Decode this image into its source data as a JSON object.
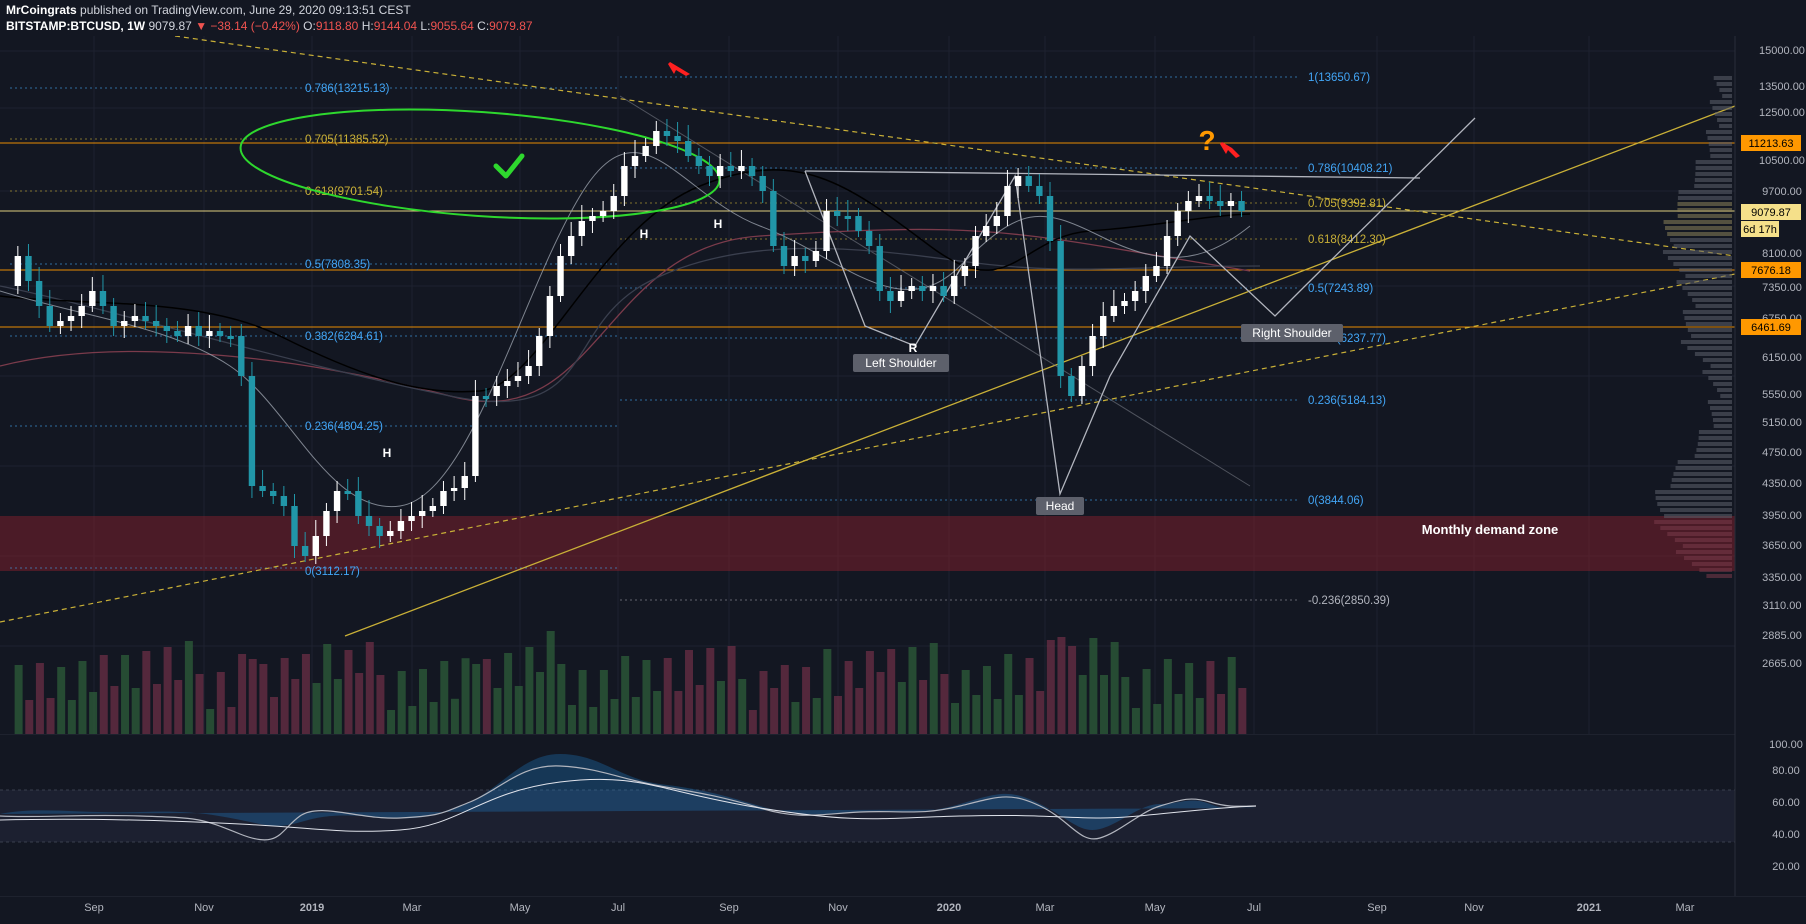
{
  "header": {
    "author": "MrCoingrats",
    "published_text": "published on TradingView.com, June 29, 2020 09:13:51 CEST",
    "symbol": "BITSTAMP:BTCUSD, 1W",
    "last": "9079.87",
    "change": "−38.14 (−0.42%)",
    "open_label": "O:",
    "open": "9118.80",
    "high_label": "H:",
    "high": "9144.04",
    "low_label": "L:",
    "low": "9055.64",
    "close_label": "C:",
    "close": "9079.87"
  },
  "price_axis": {
    "ticks": [
      "15000.00",
      "13500.00",
      "12500.00",
      "10500.00",
      "9700.00",
      "8100.00",
      "7350.00",
      "6750.00",
      "6150.00",
      "5550.00",
      "5150.00",
      "4750.00",
      "4350.00",
      "3950.00",
      "3650.00",
      "3350.00",
      "3110.00",
      "2885.00",
      "2665.00"
    ],
    "badges": [
      {
        "label": "11213.63",
        "color": "#ff9800",
        "text_color": "#000000"
      },
      {
        "label": "9079.87",
        "color": "#f5e08a",
        "text_color": "#000000"
      },
      {
        "label": "6d 17h",
        "color": "#f5e08a",
        "text_color": "#000000"
      },
      {
        "label": "7676.18",
        "color": "#ff9800",
        "text_color": "#000000"
      },
      {
        "label": "6461.69",
        "color": "#ff9800",
        "text_color": "#000000"
      }
    ]
  },
  "osc_axis": {
    "ticks": [
      "100.00",
      "80.00",
      "60.00",
      "40.00",
      "20.00"
    ]
  },
  "time_axis": {
    "labels": [
      "Sep",
      "Nov",
      "2019",
      "Mar",
      "May",
      "Jul",
      "Sep",
      "Nov",
      "2020",
      "Mar",
      "May",
      "Jul",
      "Sep",
      "Nov",
      "2021",
      "Mar"
    ]
  },
  "fib_left": [
    {
      "label": "0.786(13215.13)",
      "color": "#42a5f5"
    },
    {
      "label": "0.705(11385.52)",
      "color": "#c9b037"
    },
    {
      "label": "0.618(9701.54)",
      "color": "#c9b037"
    },
    {
      "label": "0.5(7808.35)",
      "color": "#42a5f5"
    },
    {
      "label": "0.382(6284.61)",
      "color": "#42a5f5"
    },
    {
      "label": "0.236(4804.25)",
      "color": "#42a5f5"
    },
    {
      "label": "0(3112.17)",
      "color": "#42a5f5"
    }
  ],
  "fib_right": [
    {
      "label": "1(13650.67)",
      "color": "#42a5f5"
    },
    {
      "label": "0.786(10408.21)",
      "color": "#42a5f5"
    },
    {
      "label": "0.705(9392.81)",
      "color": "#c9b037"
    },
    {
      "label": "0.618(8412.30)",
      "color": "#c9b037"
    },
    {
      "label": "0.5(7243.89)",
      "color": "#42a5f5"
    },
    {
      "label": "0.382(6237.77)",
      "color": "#42a5f5"
    },
    {
      "label": "0.236(5184.13)",
      "color": "#42a5f5"
    },
    {
      "label": "0(3844.06)",
      "color": "#42a5f5"
    },
    {
      "label": "-0.236(2850.39)",
      "color": "#b2b5be"
    }
  ],
  "annotations": {
    "demand_zone": "Monthly demand zone",
    "left_shoulder": "Left Shoulder",
    "head": "Head",
    "right_shoulder": "Right Shoulder",
    "h1": "H",
    "h2": "H",
    "h3": "H",
    "r": "R",
    "question": "?"
  },
  "colors": {
    "background": "#131722",
    "bull_candle": "#ffffff",
    "bear_candle": "#2196a8",
    "fib_blue": "#42a5f5",
    "fib_gold": "#c9b037",
    "trend_yellow": "#c9b037",
    "demand_zone": "#7a1f2b",
    "ellipse": "#2ed82e",
    "checkmark": "#2ed82e",
    "question": "#ff9800",
    "arrow_red": "#ff2020"
  }
}
